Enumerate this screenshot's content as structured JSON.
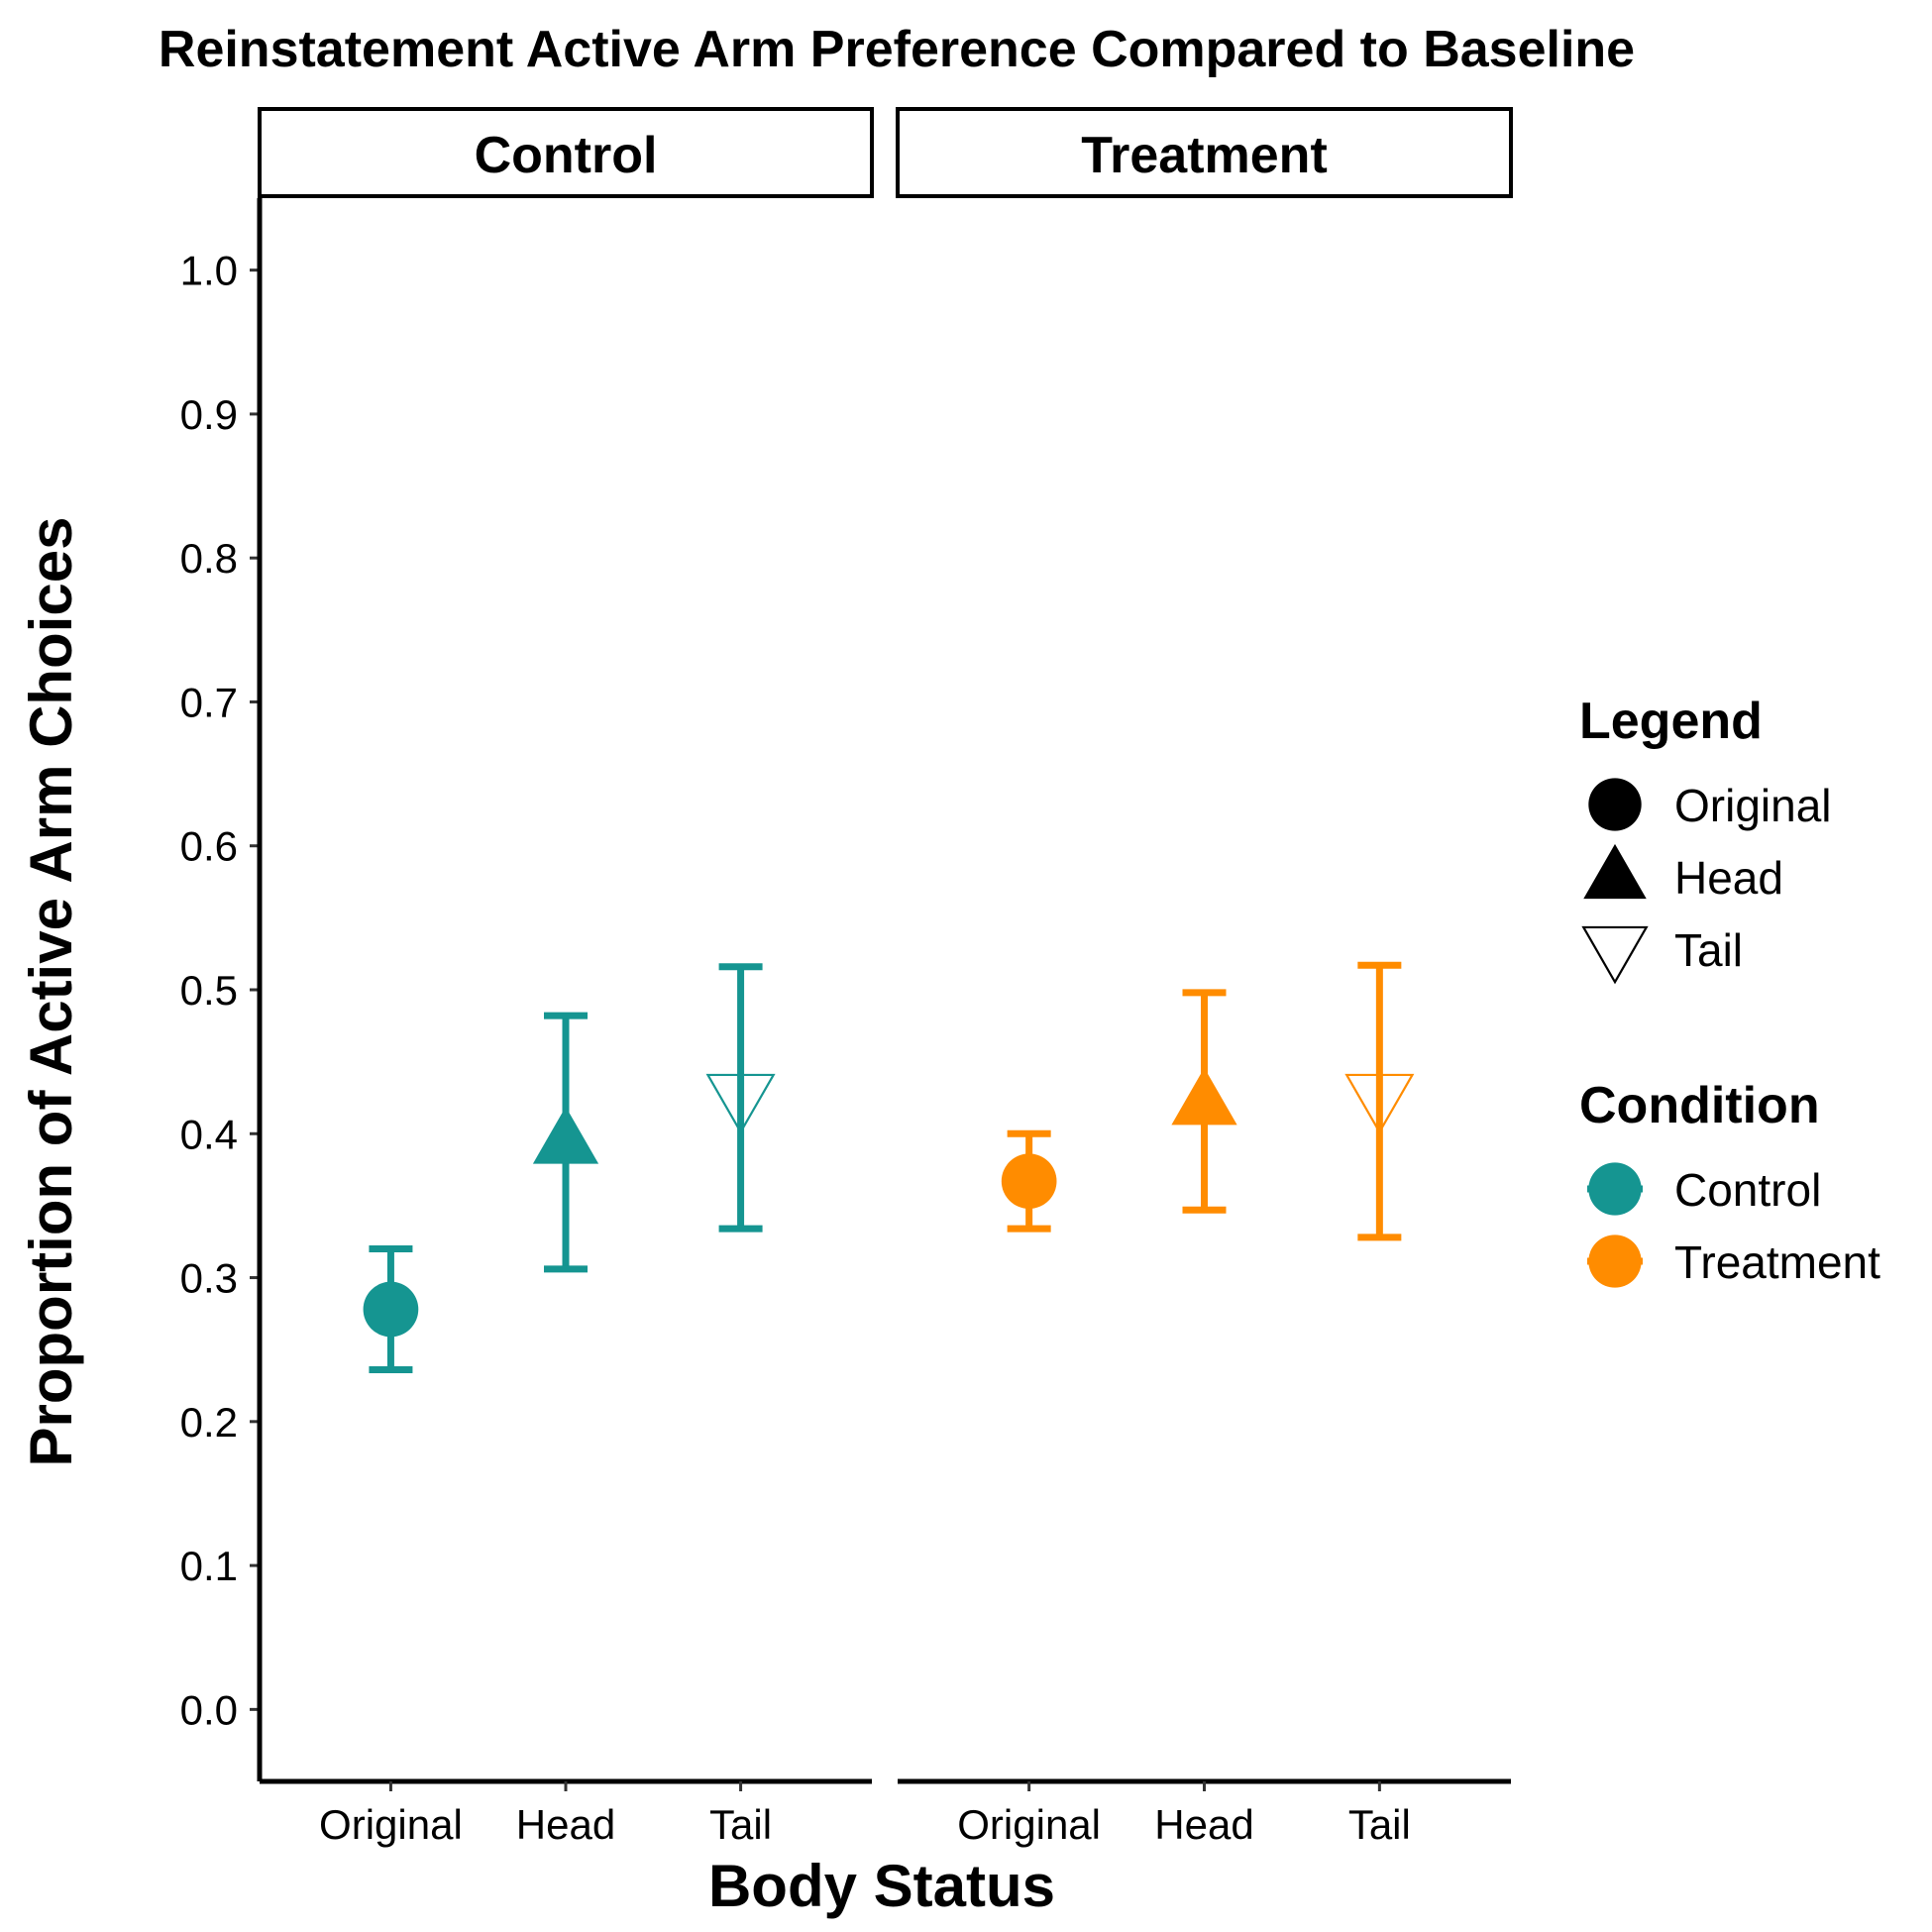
{
  "chart_data": {
    "type": "scatter",
    "title": "Reinstatement Active Arm Preference Compared to Baseline",
    "xlabel": "Body Status",
    "ylabel": "Proportion of Active Arm Choices",
    "ylim": [
      -0.05,
      1.05
    ],
    "y_ticks": [
      "0.0",
      "0.1",
      "0.2",
      "0.3",
      "0.4",
      "0.5",
      "0.6",
      "0.7",
      "0.8",
      "0.9",
      "1.0"
    ],
    "categories": [
      "Original",
      "Head",
      "Tail"
    ],
    "grid": false,
    "facets": [
      {
        "name": "Control",
        "condition": "Control",
        "color": "#159591",
        "points": [
          {
            "x": "Original",
            "shape": "circle",
            "y": 0.278,
            "ymin": 0.236,
            "ymax": 0.32
          },
          {
            "x": "Head",
            "shape": "triangle",
            "y": 0.395,
            "ymin": 0.306,
            "ymax": 0.482
          },
          {
            "x": "Tail",
            "shape": "triangle-down-open",
            "y": 0.425,
            "ymin": 0.334,
            "ymax": 0.516
          }
        ]
      },
      {
        "name": "Treatment",
        "condition": "Treatment",
        "color": "#FF8C00",
        "points": [
          {
            "x": "Original",
            "shape": "circle",
            "y": 0.367,
            "ymin": 0.334,
            "ymax": 0.4
          },
          {
            "x": "Head",
            "shape": "triangle",
            "y": 0.422,
            "ymin": 0.347,
            "ymax": 0.498
          },
          {
            "x": "Tail",
            "shape": "triangle-down-open",
            "y": 0.425,
            "ymin": 0.328,
            "ymax": 0.517
          }
        ]
      }
    ],
    "legends": [
      {
        "title": "Legend",
        "items": [
          {
            "label": "Original",
            "shape": "circle",
            "color": "#000000"
          },
          {
            "label": "Head",
            "shape": "triangle",
            "color": "#000000"
          },
          {
            "label": "Tail",
            "shape": "triangle-down-open",
            "color": "#000000"
          }
        ]
      },
      {
        "title": "Condition",
        "items": [
          {
            "label": "Control",
            "shape": "circle-line",
            "color": "#159591"
          },
          {
            "label": "Treatment",
            "shape": "circle-line",
            "color": "#FF8C00"
          }
        ]
      }
    ],
    "legend_position": "right"
  }
}
